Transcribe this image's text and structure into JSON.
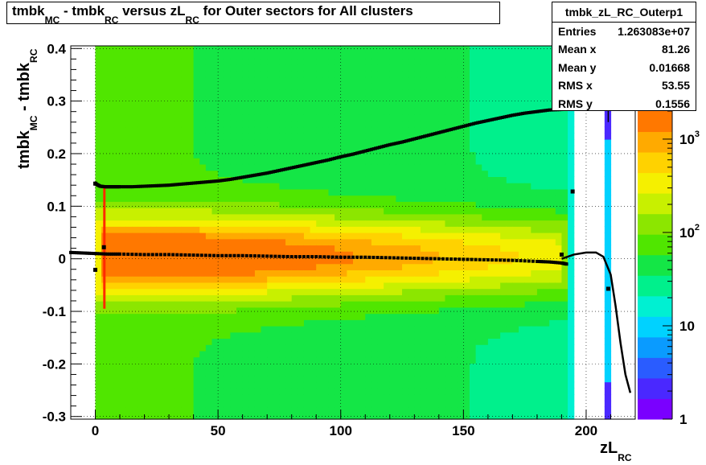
{
  "chart_data": {
    "type": "heatmap",
    "title": {
      "parts": [
        "tmbk",
        "MC",
        " - tmbk",
        "RC",
        " versus zL",
        "RC",
        " for Outer sectors for All clusters"
      ]
    },
    "xlabel": {
      "main": "zL",
      "sub": "RC"
    },
    "ylabel": {
      "main1": "tmbk",
      "sub1": "MC",
      "main2": " - tmbk",
      "sub2": "RC"
    },
    "xlim": [
      -10,
      220
    ],
    "ylim": [
      -0.305,
      0.405
    ],
    "x_ticks": [
      0,
      50,
      100,
      150,
      200
    ],
    "x_tick_labels": [
      "0",
      "50",
      "100",
      "150",
      "200"
    ],
    "y_ticks": [
      -0.3,
      -0.2,
      -0.1,
      0,
      0.1,
      0.2,
      0.3,
      0.4
    ],
    "y_tick_labels": [
      "-0.3",
      "-0.2",
      "-0.1",
      "0",
      "0.1",
      "0.2",
      "0.3",
      "0.4"
    ],
    "grid": true,
    "z_scale": "log",
    "z_range": [
      1,
      2000
    ],
    "z_ticks": [
      1,
      10,
      100,
      1000
    ],
    "palette": [
      "#7a00ff",
      "#4a28ff",
      "#2a5cff",
      "#0a9bff",
      "#00d2ff",
      "#00f0d2",
      "#00f08c",
      "#14e646",
      "#50e600",
      "#8ce600",
      "#c8f000",
      "#f5f000",
      "#ffd200",
      "#ffaa00",
      "#ff7800"
    ],
    "stats": {
      "name": "tmbk_zL_RC_Outerp1",
      "rows": [
        {
          "label": "Entries",
          "value": "1.263083e+07"
        },
        {
          "label": "Mean x",
          "value": "81.26"
        },
        {
          "label": "Mean y",
          "value": "0.01668"
        },
        {
          "label": "RMS x",
          "value": "53.55"
        },
        {
          "label": "RMS y",
          "value": "0.1556"
        }
      ]
    },
    "series": [
      {
        "type": "profile-upper",
        "x": [
          0,
          2,
          4,
          6,
          8,
          10,
          15,
          20,
          25,
          30,
          35,
          40,
          45,
          50,
          55,
          60,
          65,
          70,
          75,
          80,
          85,
          90,
          95,
          100,
          105,
          110,
          115,
          120,
          125,
          130,
          135,
          140,
          145,
          150,
          155,
          160,
          165,
          170,
          175,
          180,
          185,
          190
        ],
        "y": [
          0.143,
          0.138,
          0.137,
          0.137,
          0.137,
          0.137,
          0.137,
          0.138,
          0.139,
          0.14,
          0.142,
          0.144,
          0.146,
          0.148,
          0.151,
          0.155,
          0.159,
          0.163,
          0.168,
          0.173,
          0.178,
          0.183,
          0.188,
          0.194,
          0.199,
          0.205,
          0.211,
          0.217,
          0.222,
          0.228,
          0.234,
          0.24,
          0.246,
          0.252,
          0.258,
          0.263,
          0.268,
          0.273,
          0.277,
          0.28,
          0.283,
          0.284
        ]
      },
      {
        "type": "profile-mean",
        "x": [
          -10,
          -5,
          0,
          5,
          10,
          20,
          30,
          40,
          50,
          60,
          70,
          80,
          90,
          100,
          110,
          120,
          130,
          140,
          150,
          160,
          170,
          180,
          185,
          190,
          192
        ],
        "y": [
          0.012,
          0.011,
          0.01,
          0.009,
          0.009,
          0.008,
          0.008,
          0.007,
          0.006,
          0.006,
          0.005,
          0.004,
          0.004,
          0.003,
          0.003,
          0.002,
          0.001,
          0.0,
          -0.001,
          -0.002,
          -0.003,
          -0.005,
          -0.006,
          -0.008,
          -0.01
        ]
      },
      {
        "type": "fit",
        "x": [
          190,
          195,
          200,
          204,
          207,
          210,
          212,
          214,
          216,
          218
        ],
        "y": [
          0.0,
          0.008,
          0.012,
          0.012,
          0.004,
          -0.03,
          -0.09,
          -0.16,
          -0.22,
          -0.255
        ]
      },
      {
        "type": "markers",
        "x": [
          0,
          0,
          3.5,
          194.5,
          190,
          209
        ],
        "y": [
          0.143,
          -0.021,
          0.022,
          0.128,
          0.008,
          -0.057
        ]
      }
    ],
    "notes": "2D histogram counts on log color scale: red-orange core near zL 0-60, yellow band out to ~0.1, green at edges; empty area above zL 195 except a narrow column near zL 209."
  }
}
